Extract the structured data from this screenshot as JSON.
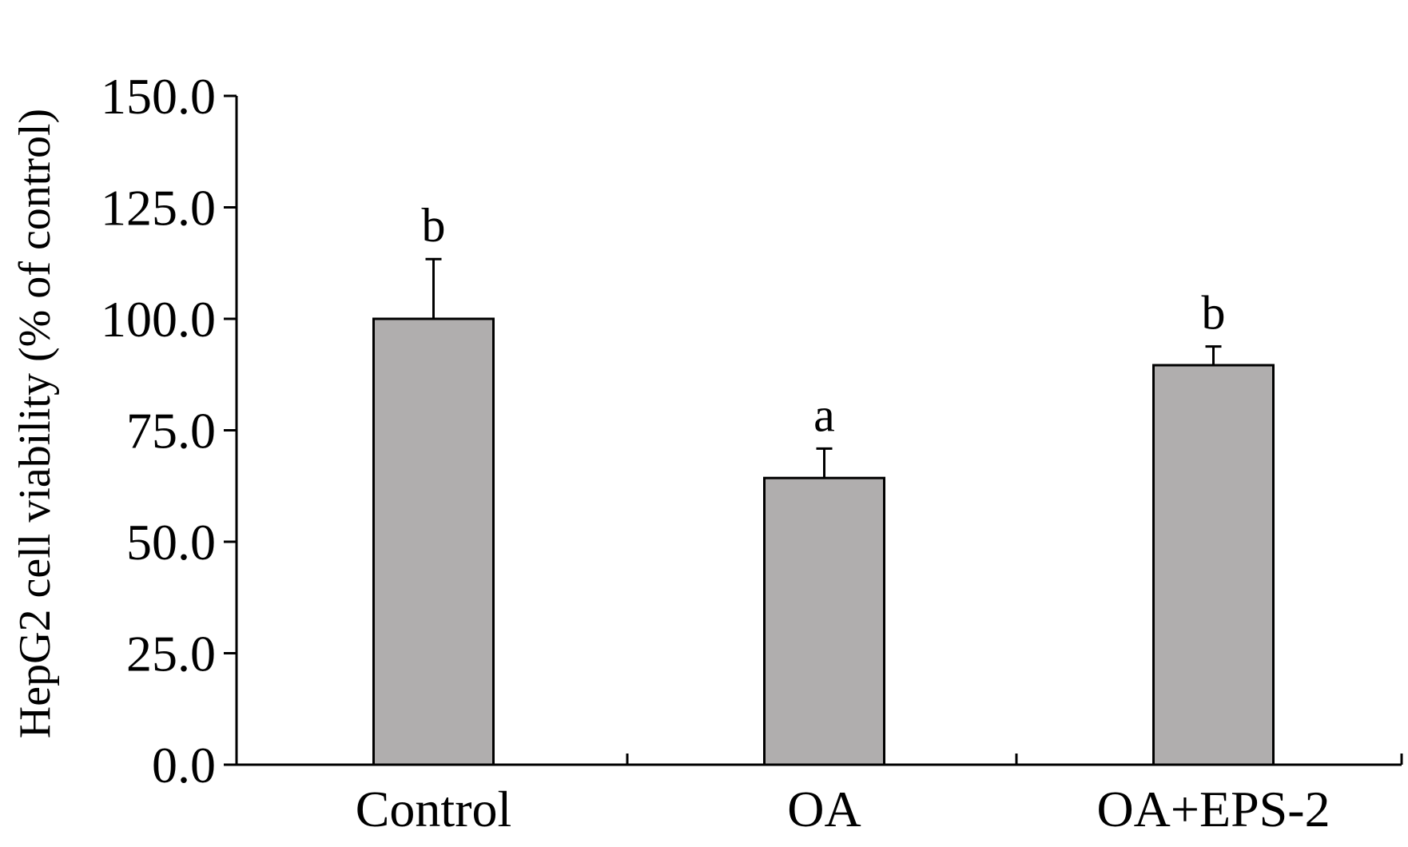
{
  "chart_data": {
    "type": "bar",
    "title": "",
    "xlabel": "",
    "ylabel": "HepG2 cell viability (% of control)",
    "categories": [
      "Control",
      "OA",
      "OA+EPS-2"
    ],
    "values": [
      100.0,
      64.3,
      89.6
    ],
    "error_upper": [
      13.4,
      6.6,
      4.2
    ],
    "significance_labels": [
      "b",
      "a",
      "b"
    ],
    "ylim": [
      0,
      150
    ],
    "yticks": [
      0,
      25,
      50,
      75,
      100,
      125,
      150
    ],
    "ytick_labels": [
      "0.0",
      "25.0",
      "50.0",
      "75.0",
      "100.0",
      "125.0",
      "150.0"
    ],
    "grid": false,
    "legend": "none",
    "bar_color": "#b0aeae",
    "edge_color": "#000000"
  }
}
